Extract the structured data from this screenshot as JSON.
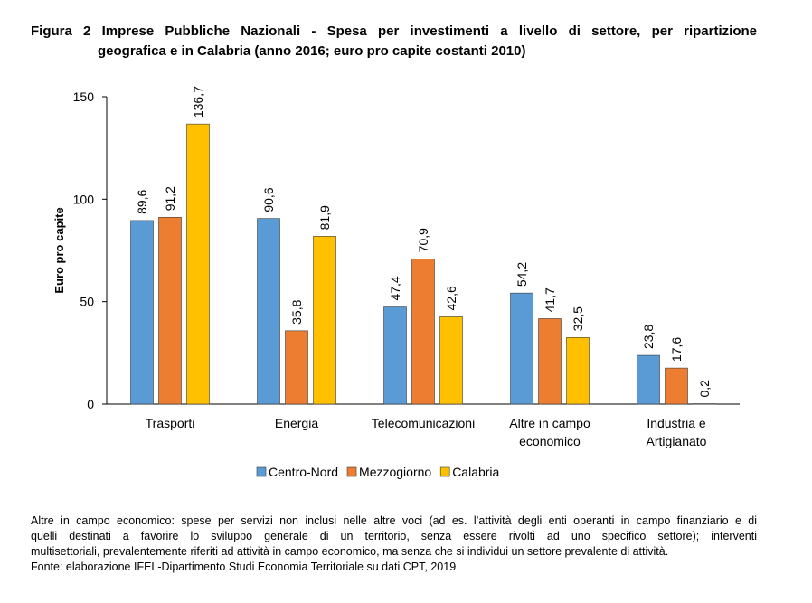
{
  "title": {
    "line1": "Figura 2 Imprese Pubbliche Nazionali - Spesa per investimenti a livello di settore, per ripartizione",
    "line2": "geografica e in Calabria (anno 2016; euro pro capite costanti 2010)"
  },
  "chart_data": {
    "type": "bar",
    "categories": [
      [
        "Trasporti"
      ],
      [
        "Energia"
      ],
      [
        "Telecomunicazioni"
      ],
      [
        "Altre in campo",
        "economico"
      ],
      [
        "Industria e",
        "Artigianato"
      ]
    ],
    "series": [
      {
        "name": "Centro-Nord",
        "color": "#5B9BD5",
        "values": [
          89.6,
          90.6,
          47.4,
          54.2,
          23.8
        ],
        "labels": [
          "89,6",
          "90,6",
          "47,4",
          "54,2",
          "23,8"
        ]
      },
      {
        "name": "Mezzogiorno",
        "color": "#ED7D31",
        "values": [
          91.2,
          35.8,
          70.9,
          41.7,
          17.6
        ],
        "labels": [
          "91,2",
          "35,8",
          "70,9",
          "41,7",
          "17,6"
        ]
      },
      {
        "name": "Calabria",
        "color": "#FFC000",
        "values": [
          136.7,
          81.9,
          42.6,
          32.5,
          0.2
        ],
        "labels": [
          "136,7",
          "81,9",
          "42,6",
          "32,5",
          "0,2"
        ]
      }
    ],
    "ylabel": "Euro pro capite",
    "ylim": [
      0,
      150
    ],
    "yticks": [
      0,
      50,
      100,
      150
    ],
    "grid": false,
    "legend": "bottom"
  },
  "notes": {
    "line1": "Altre in campo economico: spese per servizi non inclusi nelle altre voci (ad es. l’attività degli enti operanti in campo finanziario e di",
    "line2": "quelli destinati a favorire lo sviluppo generale di un territorio, senza essere rivolti ad uno specifico settore); interventi",
    "line3": "multisettoriali, prevalentemente riferiti ad attività in campo economico, ma senza che si individui un settore prevalente di attività.",
    "source": "Fonte: elaborazione IFEL-Dipartimento Studi Economia Territoriale su dati CPT, 2019"
  }
}
